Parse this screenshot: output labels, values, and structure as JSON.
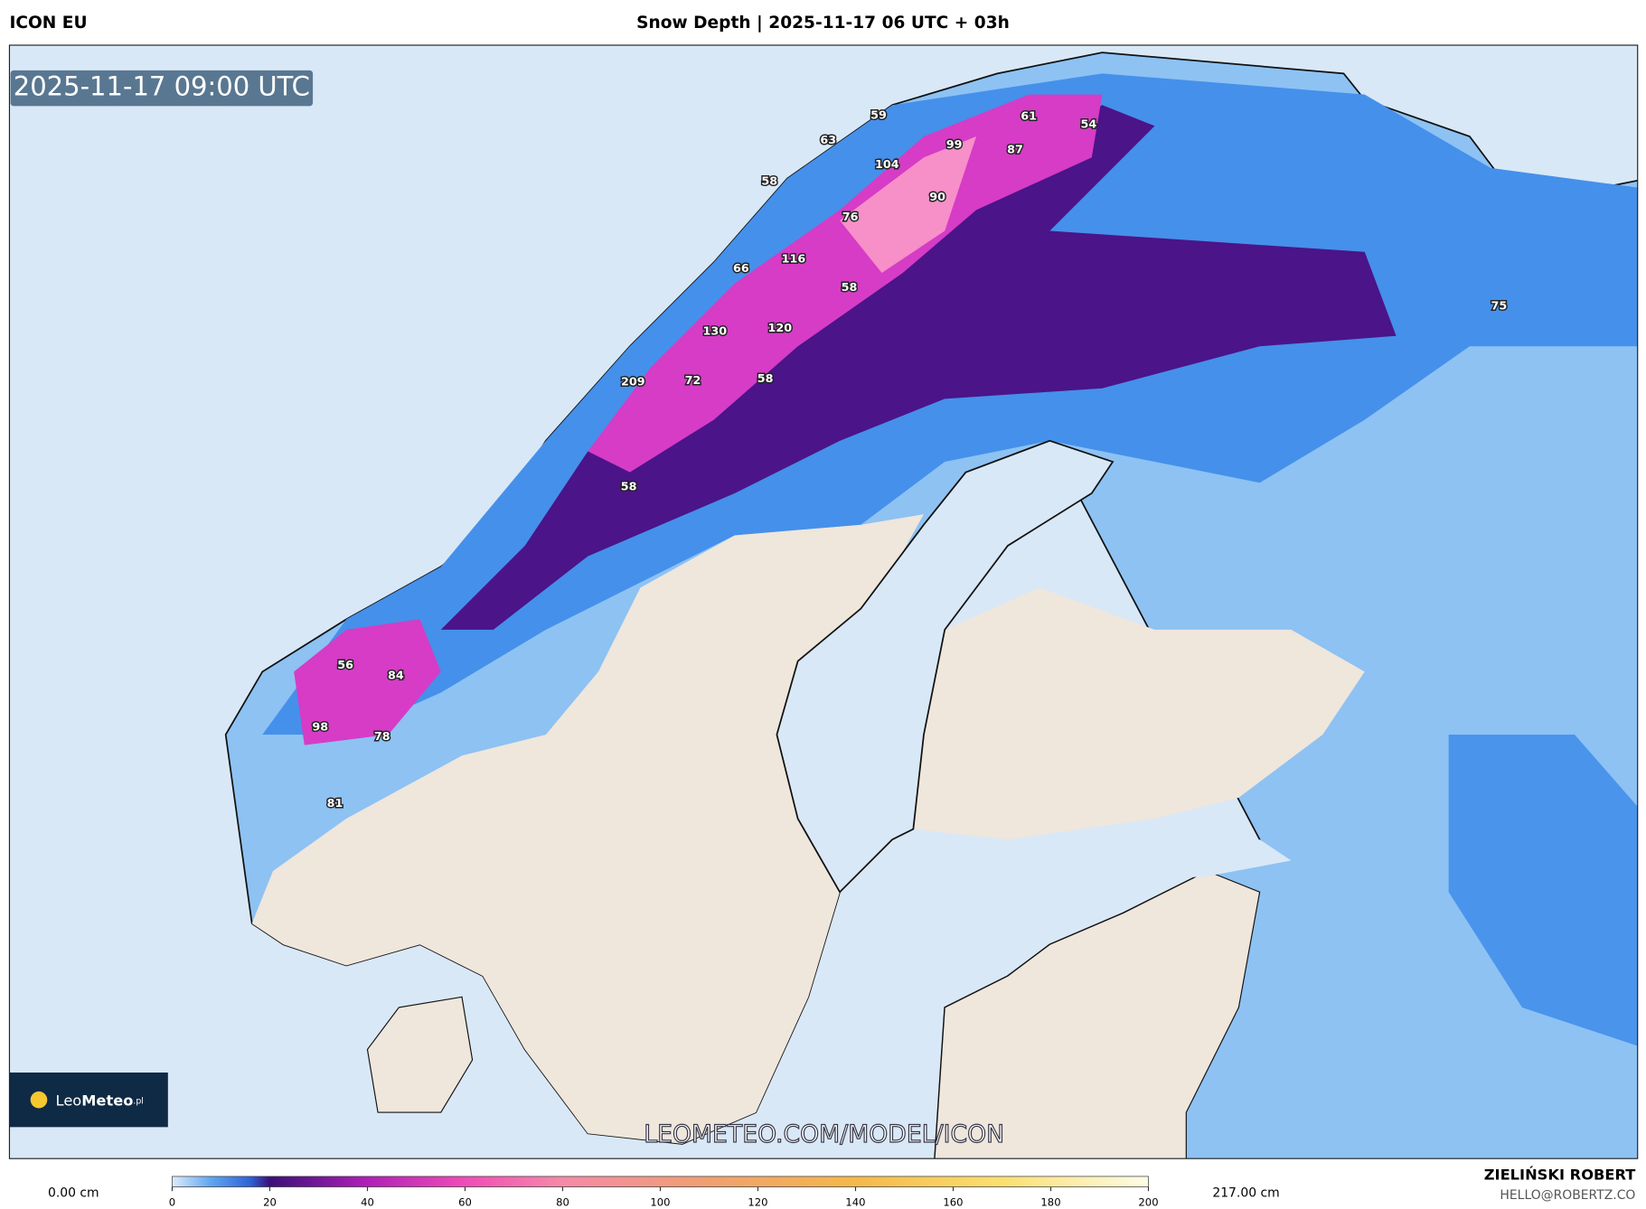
{
  "header": {
    "model": "ICON EU",
    "title": "Snow Depth | 2025-11-17 06 UTC + 03h"
  },
  "map": {
    "valid_time": "2025-11-17 09:00 UTC",
    "watermark": "LEOMETEO.COM/MODEL/ICON",
    "logo": {
      "part1": "Leo",
      "part2": "Meteo",
      "suffix": ".pl"
    },
    "point_values": [
      59,
      63,
      104,
      99,
      87,
      61,
      54,
      58,
      90,
      76,
      116,
      66,
      58,
      130,
      120,
      209,
      72,
      58,
      58,
      56,
      84,
      98,
      78,
      81,
      75
    ]
  },
  "colorbar": {
    "min_label": "0.00 cm",
    "max_label": "217.00 cm",
    "range": [
      0,
      200
    ],
    "ticks": [
      0,
      20,
      40,
      60,
      80,
      100,
      120,
      140,
      160,
      180,
      200
    ]
  },
  "footer": {
    "author": "ZIELIŃSKI ROBERT",
    "email": "HELLO@ROBERTZ.CO"
  }
}
